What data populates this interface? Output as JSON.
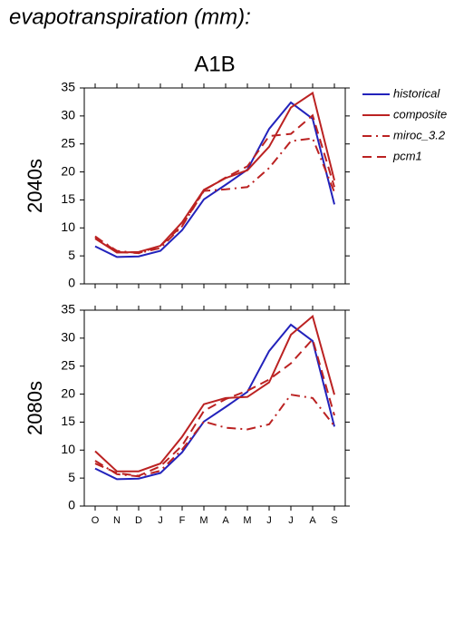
{
  "title": "evapotranspiration (mm):",
  "scenario": "A1B",
  "chart_data": [
    {
      "type": "line",
      "ylabel": "2040s",
      "ylim": [
        0,
        35
      ],
      "yticks": [
        0,
        5,
        10,
        15,
        20,
        25,
        30,
        35
      ],
      "series": [
        {
          "name": "historical",
          "color": "#2222bb",
          "dash": "solid",
          "values": [
            6.7,
            4.8,
            4.9,
            5.9,
            9.6,
            15.1,
            17.7,
            20.4,
            27.7,
            32.4,
            29.5,
            14.2
          ]
        },
        {
          "name": "composite",
          "color": "#bb2222",
          "dash": "solid",
          "values": [
            8.1,
            5.6,
            5.7,
            6.8,
            11.0,
            16.8,
            18.9,
            20.3,
            24.5,
            31.5,
            34.1,
            18.5
          ]
        },
        {
          "name": "miroc_3.2",
          "color": "#bb2222",
          "dash": "dashdot",
          "values": [
            8.4,
            5.9,
            5.5,
            6.4,
            10.3,
            16.6,
            16.9,
            17.3,
            20.7,
            25.5,
            26.0,
            16.4
          ]
        },
        {
          "name": "pcm1",
          "color": "#bb2222",
          "dash": "dashed",
          "values": [
            8.5,
            5.7,
            5.5,
            6.8,
            10.4,
            16.7,
            19.0,
            21.0,
            26.4,
            26.8,
            30.1,
            17.3
          ]
        }
      ]
    },
    {
      "type": "line",
      "ylabel": "2080s",
      "ylim": [
        0,
        35
      ],
      "yticks": [
        0,
        5,
        10,
        15,
        20,
        25,
        30,
        35
      ],
      "categories": [
        "O",
        "N",
        "D",
        "J",
        "F",
        "M",
        "A",
        "M",
        "J",
        "J",
        "A",
        "S"
      ],
      "series": [
        {
          "color": "#2222bb",
          "dash": "solid",
          "values": [
            6.7,
            4.8,
            4.9,
            5.9,
            9.6,
            15.1,
            17.7,
            20.4,
            27.7,
            32.4,
            29.5,
            14.2
          ]
        },
        {
          "color": "#bb2222",
          "dash": "solid",
          "values": [
            9.8,
            6.2,
            6.2,
            7.6,
            12.4,
            18.2,
            19.3,
            19.5,
            22.1,
            30.6,
            33.9,
            19.9
          ]
        },
        {
          "color": "#bb2222",
          "dash": "dashdot",
          "values": [
            8.1,
            5.7,
            5.3,
            6.3,
            10.1,
            15.1,
            14.0,
            13.7,
            14.6,
            19.9,
            19.3,
            14.3
          ]
        },
        {
          "color": "#bb2222",
          "dash": "dashed",
          "values": [
            7.6,
            5.9,
            5.4,
            7.1,
            10.8,
            17.0,
            19.1,
            20.6,
            22.6,
            25.5,
            29.8,
            16.2
          ]
        }
      ]
    }
  ]
}
